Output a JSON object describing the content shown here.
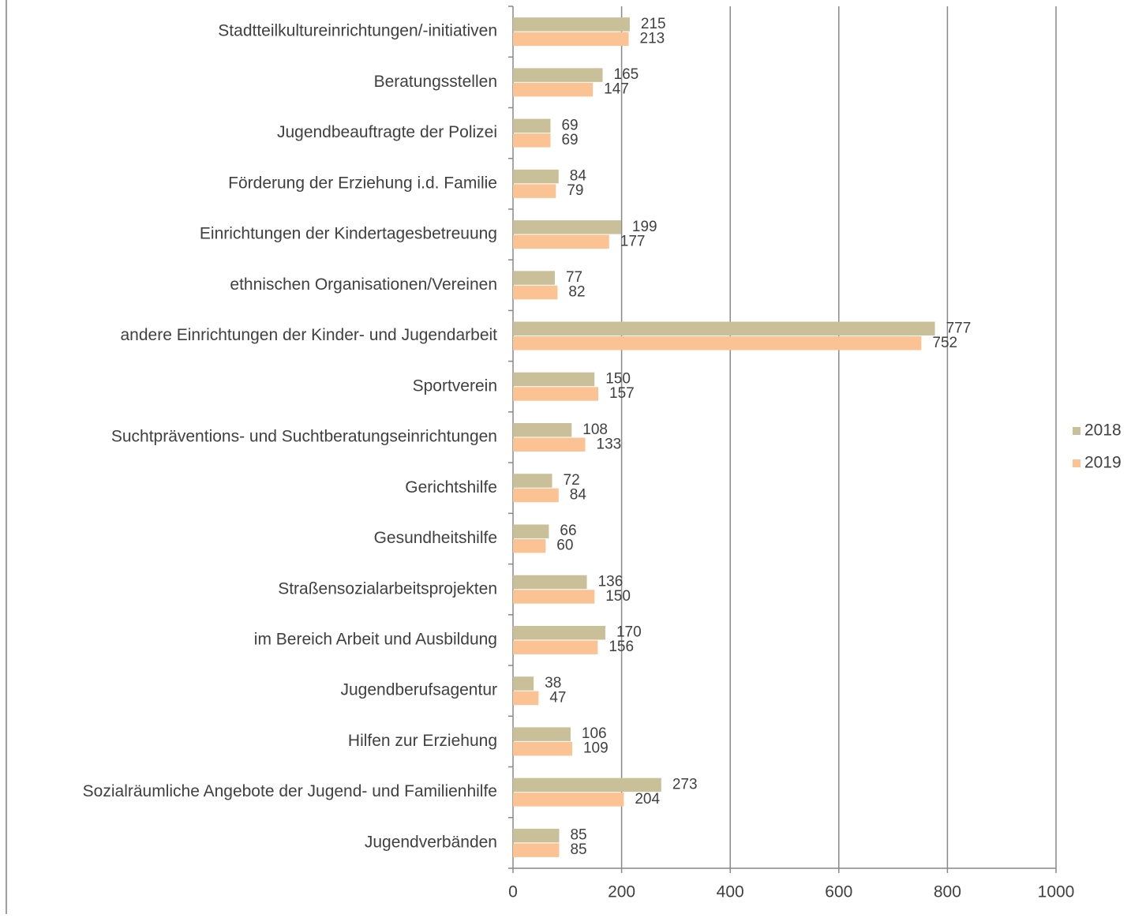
{
  "chart_data": {
    "type": "bar",
    "orientation": "horizontal",
    "categories": [
      "Stadtteilkultureinrichtungen/-initiativen",
      "Beratungsstellen",
      "Jugendbeauftragte der Polizei",
      "Förderung der Erziehung i.d. Familie",
      "Einrichtungen der Kindertagesbetreuung",
      "ethnischen Organisationen/Vereinen",
      "andere Einrichtungen der Kinder- und Jugendarbeit",
      "Sportverein",
      "Suchtpräventions- und Suchtberatungseinrichtungen",
      "Gerichtshilfe",
      "Gesundheitshilfe",
      "Straßensozialarbeitsprojekten",
      "im Bereich Arbeit und Ausbildung",
      "Jugendberufsagentur",
      "Hilfen zur Erziehung",
      "Sozialräumliche Angebote der Jugend- und Familienhilfe",
      "Jugendverbänden"
    ],
    "series": [
      {
        "name": "2018",
        "color": "#c9c09a",
        "values": [
          215,
          165,
          69,
          84,
          199,
          77,
          777,
          150,
          108,
          72,
          66,
          136,
          170,
          38,
          106,
          273,
          85
        ]
      },
      {
        "name": "2019",
        "color": "#fbc294",
        "values": [
          213,
          147,
          69,
          79,
          177,
          82,
          752,
          157,
          133,
          84,
          60,
          150,
          156,
          47,
          109,
          204,
          85
        ]
      }
    ],
    "xlim": [
      0,
      1000
    ],
    "xticks": [
      0,
      200,
      400,
      600,
      800,
      1000
    ],
    "grid": true,
    "legend": "right"
  }
}
